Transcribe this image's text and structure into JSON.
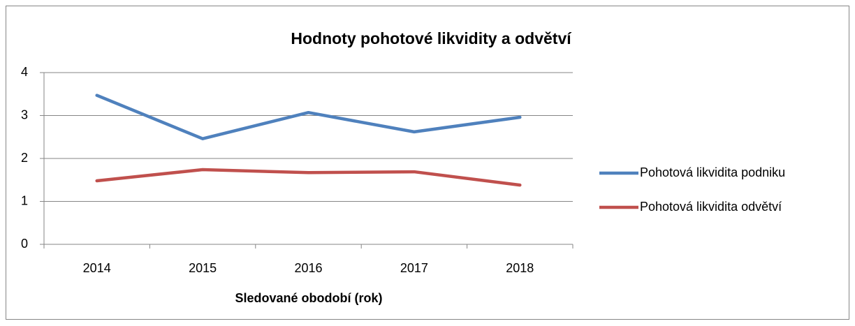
{
  "chart_data": {
    "type": "line",
    "title": "Hodnoty pohotové likvidity a odvětví",
    "x_label": "Sledované obodobí (rok)",
    "categories": [
      "2014",
      "2015",
      "2016",
      "2017",
      "2018"
    ],
    "series": [
      {
        "name": "Pohotová likvidita podniku",
        "color": "#4f81bd",
        "values": [
          3.47,
          2.46,
          3.07,
          2.62,
          2.96
        ]
      },
      {
        "name": "Pohotová likvidita odvětví",
        "color": "#c0504d",
        "values": [
          1.48,
          1.74,
          1.67,
          1.69,
          1.38
        ]
      }
    ],
    "ylim": [
      0,
      4
    ],
    "yticks": [
      0,
      1,
      2,
      3,
      4
    ],
    "grid": true,
    "legend": "right"
  }
}
